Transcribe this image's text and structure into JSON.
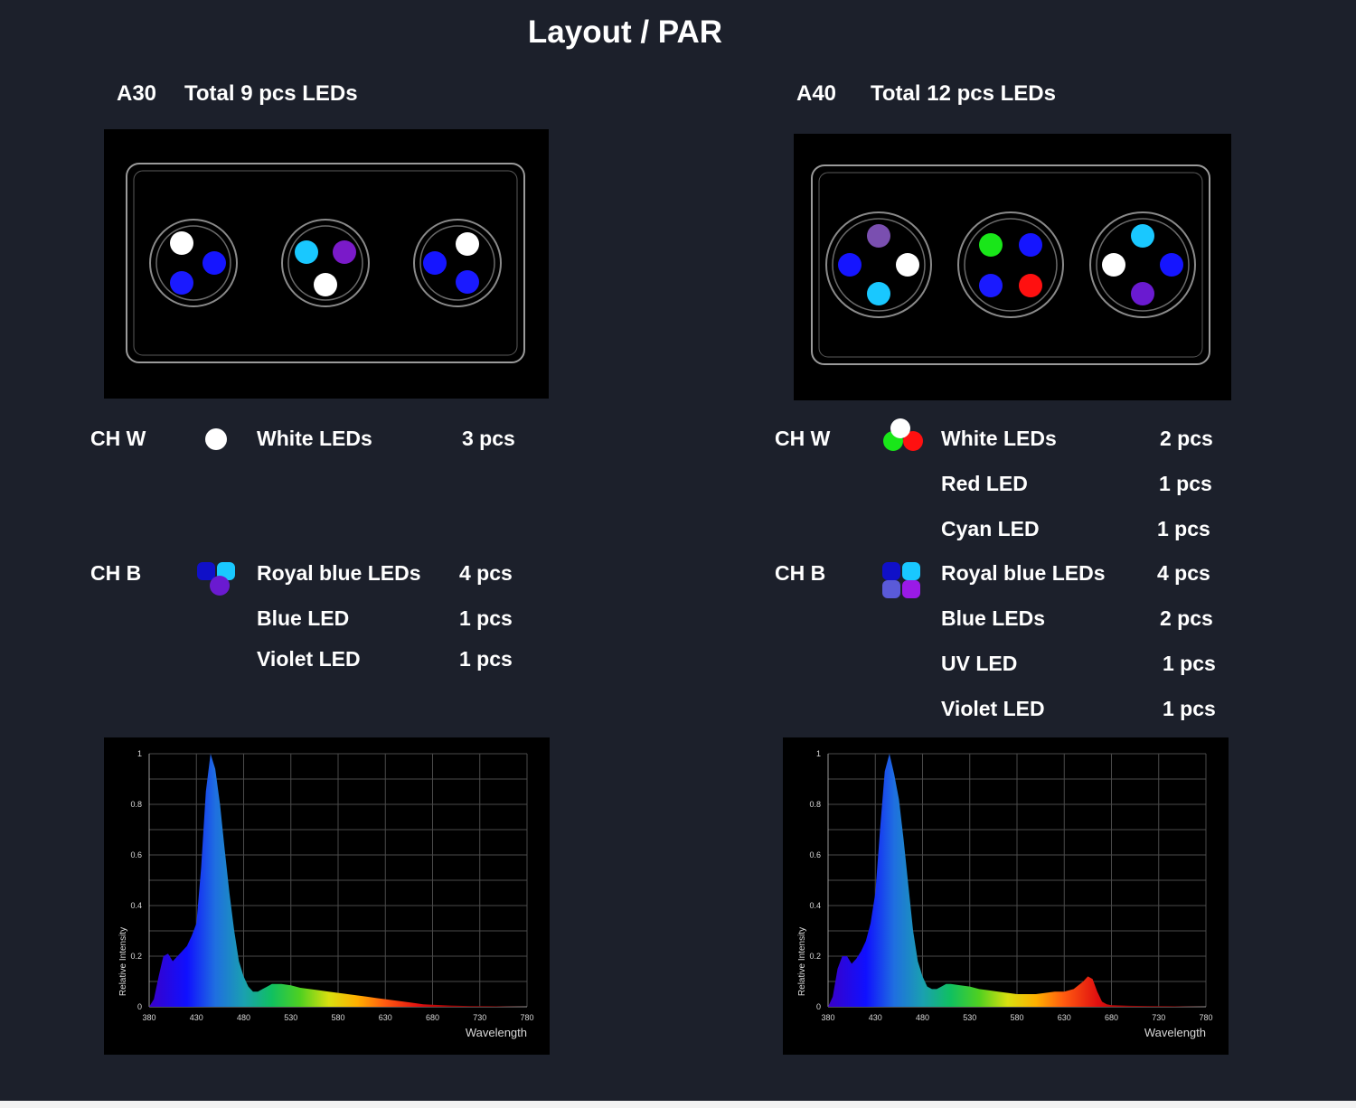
{
  "title": "Layout / PAR",
  "a30": {
    "model": "A30",
    "total": "Total 9 pcs LEDs",
    "clusters": [
      [
        "#ffffff",
        "#1515ff",
        "#1a1aff"
      ],
      [
        "#19c8ff",
        "#7a1ac9",
        "#ffffff"
      ],
      [
        "#ffffff",
        "#1515ff",
        "#1a1aff"
      ]
    ],
    "channels": [
      {
        "ch": "CH W",
        "icon": "white-dot-icon",
        "rows": [
          {
            "name": "White LEDs",
            "qty": "3 pcs"
          }
        ]
      },
      {
        "ch": "CH B",
        "icon": "blue-violet-cluster-icon",
        "rows": [
          {
            "name": "Royal blue LEDs",
            "qty": "4 pcs"
          },
          {
            "name": "Blue LED",
            "qty": "1 pcs"
          },
          {
            "name": "Violet LED",
            "qty": "1 pcs"
          }
        ]
      }
    ]
  },
  "a40": {
    "model": "A40",
    "total": "Total 12 pcs  LEDs",
    "clusters": [
      [
        "#7a4fb0",
        "#1515ff",
        "#ffffff",
        "#19c8ff"
      ],
      [
        "#19e619",
        "#1515ff",
        "#1a1aff",
        "#ff1010"
      ],
      [
        "#19c8ff",
        "#ffffff",
        "#1515ff",
        "#6a1ad0"
      ]
    ],
    "channels": [
      {
        "ch": "CH W",
        "icon": "white-red-green-cluster-icon",
        "rows": [
          {
            "name": "White LEDs",
            "qty": "2 pcs"
          },
          {
            "name": "Red  LED",
            "qty": "1 pcs"
          },
          {
            "name": "Cyan LED",
            "qty": "1 pcs"
          }
        ]
      },
      {
        "ch": "CH B",
        "icon": "blue-violet-cluster-icon",
        "rows": [
          {
            "name": "Royal blue LEDs",
            "qty": "4 pcs"
          },
          {
            "name": "Blue LEDs",
            "qty": "2 pcs"
          },
          {
            "name": "UV LED",
            "qty": "1 pcs"
          },
          {
            "name": "Violet LED",
            "qty": "1 pcs"
          }
        ]
      }
    ]
  },
  "chart_data": [
    {
      "type": "area",
      "name": "A30 spectrum",
      "xlabel": "Wavelength",
      "ylabel": "Relative Intensity",
      "xlim": [
        380,
        780
      ],
      "ylim": [
        0,
        1
      ],
      "x_ticks": [
        "380",
        "430",
        "480",
        "530",
        "580",
        "630",
        "680",
        "730",
        "780"
      ],
      "y_ticks": [
        "0",
        "0.2",
        "0.4",
        "0.6",
        "0.8",
        "1"
      ],
      "x": [
        380,
        385,
        390,
        395,
        400,
        405,
        410,
        415,
        420,
        425,
        430,
        435,
        440,
        445,
        450,
        455,
        460,
        465,
        470,
        475,
        480,
        485,
        490,
        495,
        500,
        505,
        510,
        520,
        530,
        540,
        550,
        560,
        570,
        580,
        590,
        600,
        610,
        620,
        630,
        640,
        650,
        660,
        670,
        680,
        700,
        720,
        740,
        760,
        780
      ],
      "y": [
        0,
        0.03,
        0.12,
        0.2,
        0.21,
        0.18,
        0.2,
        0.22,
        0.24,
        0.28,
        0.33,
        0.55,
        0.85,
        1.0,
        0.94,
        0.8,
        0.62,
        0.45,
        0.3,
        0.18,
        0.12,
        0.08,
        0.06,
        0.06,
        0.07,
        0.08,
        0.09,
        0.09,
        0.085,
        0.075,
        0.07,
        0.065,
        0.06,
        0.055,
        0.05,
        0.045,
        0.04,
        0.035,
        0.03,
        0.025,
        0.02,
        0.015,
        0.01,
        0.008,
        0.005,
        0.003,
        0.002,
        0.001,
        0
      ]
    },
    {
      "type": "area",
      "name": "A40 spectrum",
      "xlabel": "Wavelength",
      "ylabel": "Relative Intensity",
      "xlim": [
        380,
        780
      ],
      "ylim": [
        0,
        1
      ],
      "x_ticks": [
        "380",
        "430",
        "480",
        "530",
        "580",
        "630",
        "680",
        "730",
        "780"
      ],
      "y_ticks": [
        "0",
        "0.2",
        "0.4",
        "0.6",
        "0.8",
        "1"
      ],
      "x": [
        380,
        385,
        390,
        395,
        400,
        405,
        410,
        415,
        420,
        425,
        430,
        435,
        440,
        445,
        450,
        455,
        460,
        465,
        470,
        475,
        480,
        485,
        490,
        495,
        500,
        505,
        510,
        520,
        530,
        540,
        550,
        560,
        570,
        580,
        590,
        600,
        610,
        620,
        630,
        640,
        650,
        655,
        660,
        665,
        670,
        675,
        680,
        700,
        720,
        740,
        760,
        780
      ],
      "y": [
        0,
        0.04,
        0.15,
        0.2,
        0.2,
        0.17,
        0.19,
        0.22,
        0.26,
        0.33,
        0.45,
        0.7,
        0.93,
        1.0,
        0.92,
        0.82,
        0.66,
        0.48,
        0.3,
        0.18,
        0.12,
        0.08,
        0.07,
        0.07,
        0.08,
        0.09,
        0.09,
        0.085,
        0.08,
        0.07,
        0.065,
        0.06,
        0.055,
        0.05,
        0.05,
        0.05,
        0.055,
        0.06,
        0.06,
        0.07,
        0.1,
        0.12,
        0.11,
        0.06,
        0.02,
        0.01,
        0.006,
        0.004,
        0.003,
        0.002,
        0.001,
        0
      ]
    }
  ]
}
